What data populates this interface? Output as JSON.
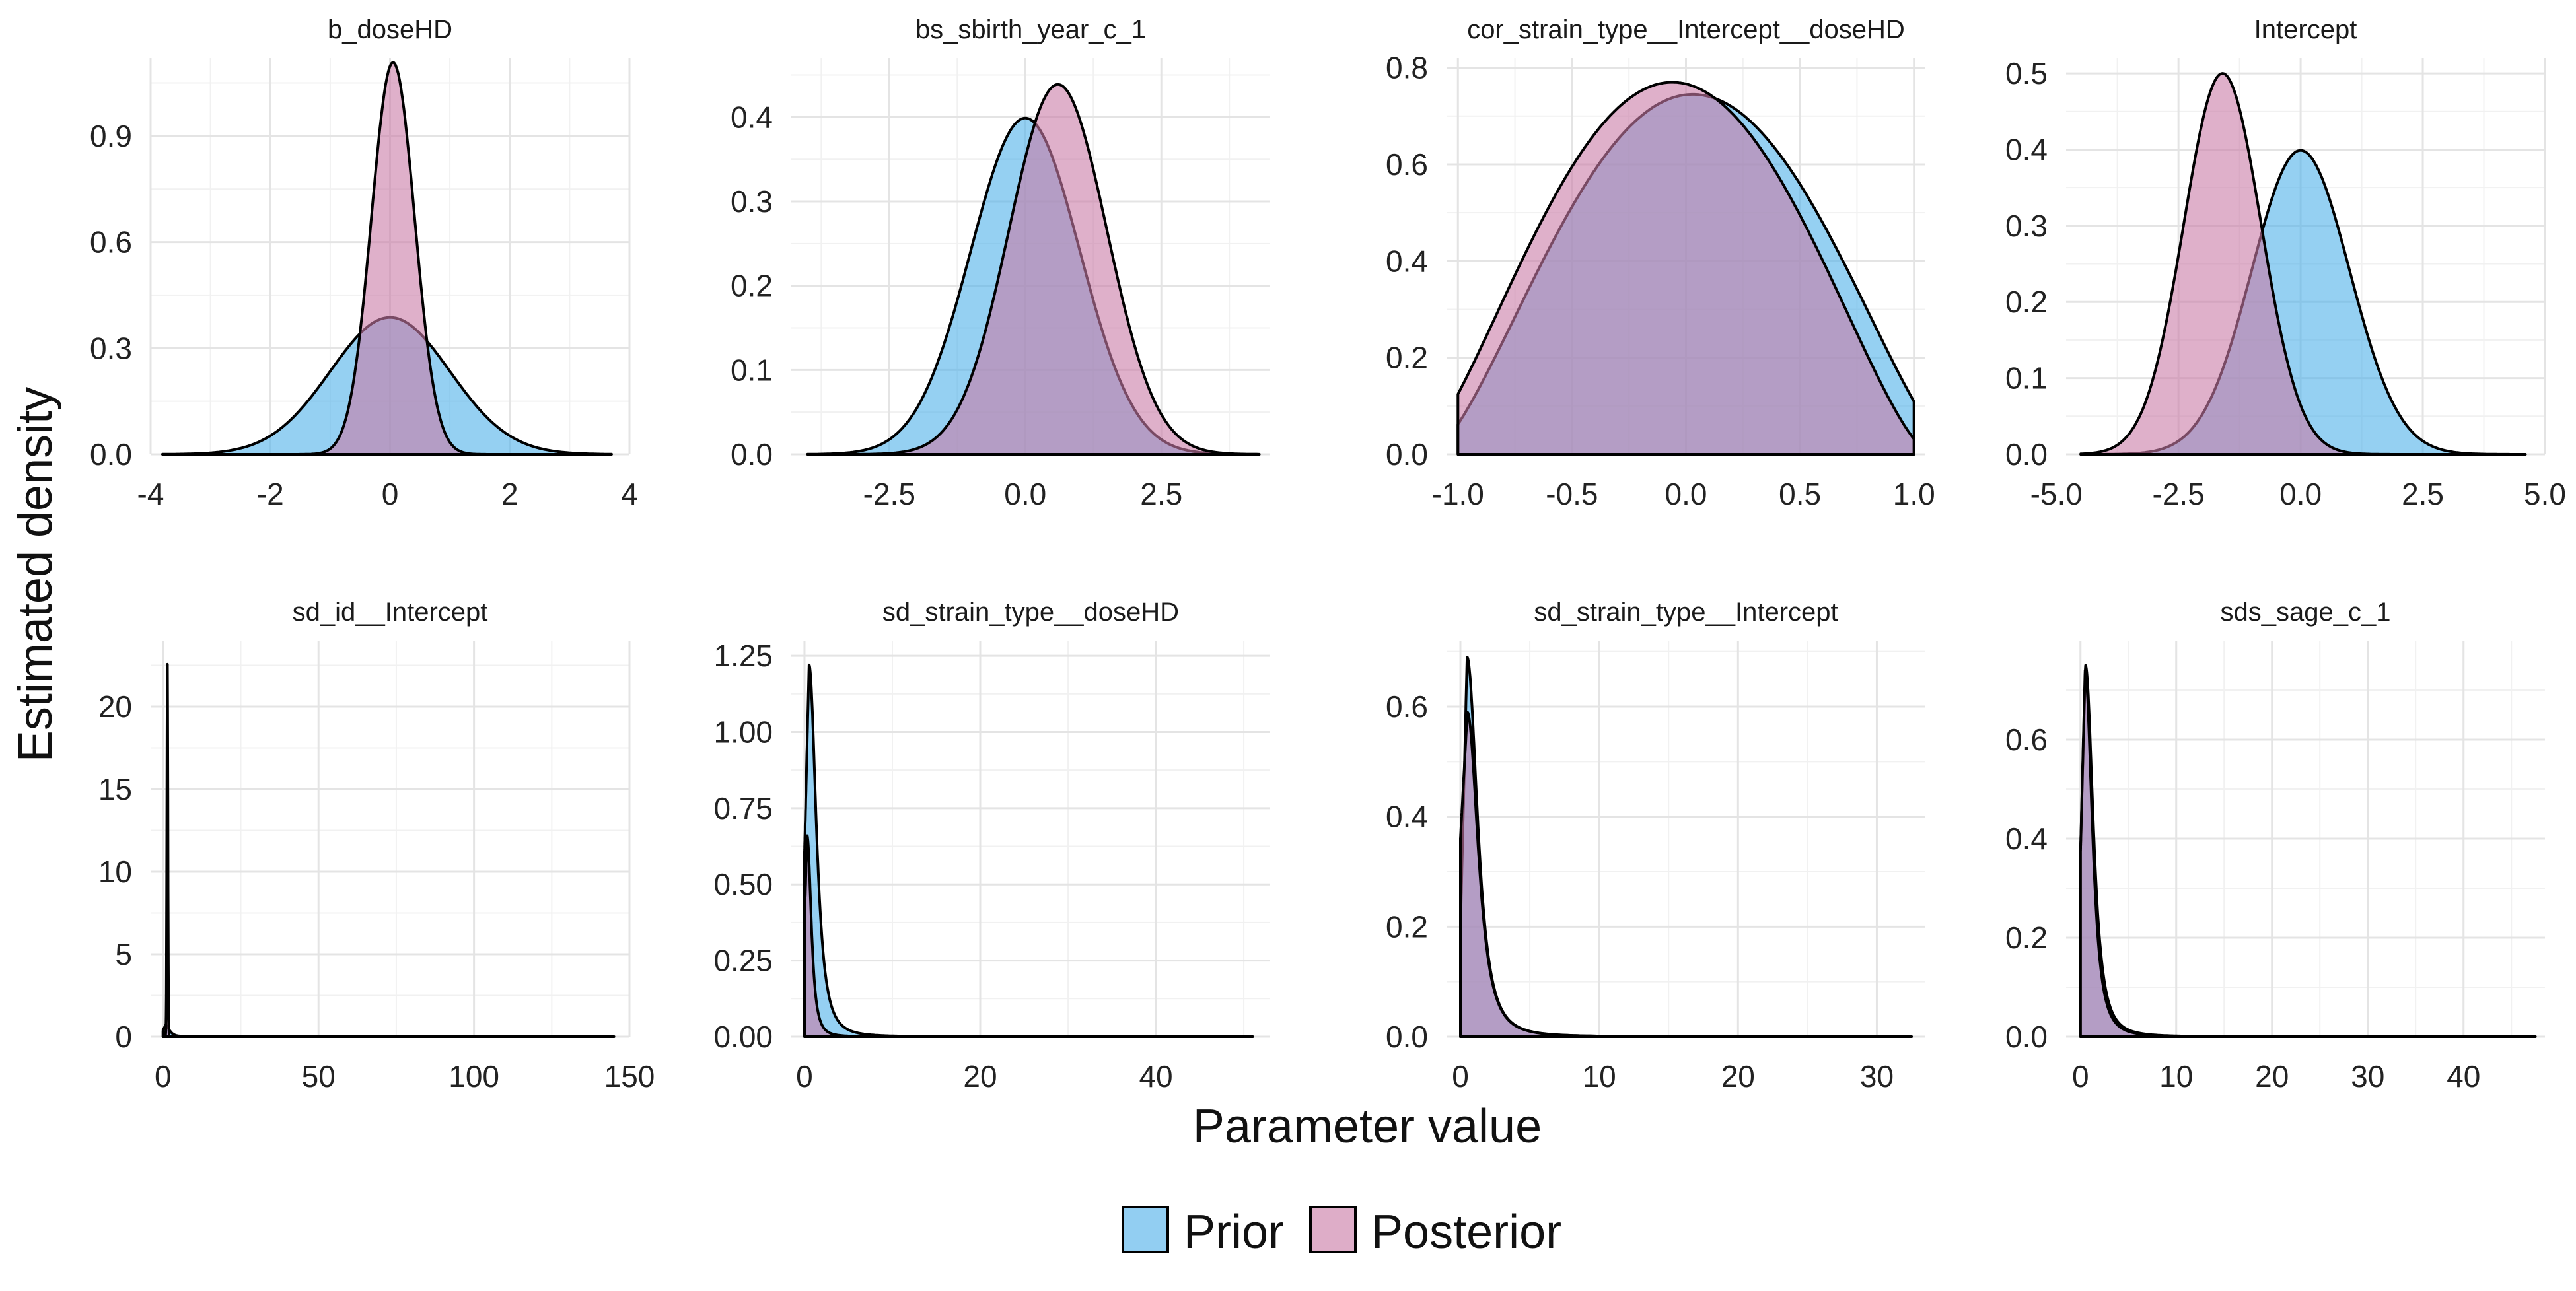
{
  "chart_data": {
    "type": "area",
    "xlabel": "Parameter value",
    "ylabel": "Estimated density",
    "colors": {
      "prior": "#4fb0ea",
      "posterior": "#c97ba6"
    },
    "legend": {
      "position": "bottom",
      "entries": [
        {
          "name": "Prior",
          "color": "#4fb0ea"
        },
        {
          "name": "Posterior",
          "color": "#c97ba6"
        }
      ]
    },
    "panels": [
      {
        "title": "b_doseHD",
        "xlim": [
          -4,
          4
        ],
        "ylim": [
          0,
          1.12
        ],
        "x_ticks": [
          -4,
          -2,
          0,
          2,
          4
        ],
        "x_tick_labels": [
          "-4",
          "-2",
          "0",
          "2",
          "4"
        ],
        "y_ticks": [
          0,
          0.3,
          0.6,
          0.9
        ],
        "y_tick_labels": [
          "0.0",
          "0.3",
          "0.6",
          "0.9"
        ],
        "x_range": [
          -3.8,
          3.7
        ],
        "series": [
          {
            "name": "Prior",
            "dist": {
              "kind": "normal",
              "mu": 0,
              "sigma": 1.0,
              "scale": 0.97
            }
          },
          {
            "name": "Posterior",
            "dist": {
              "kind": "normal",
              "mu": 0.05,
              "sigma": 0.36,
              "scale": 1.0
            }
          }
        ]
      },
      {
        "title": "bs_sbirth_year_c_1",
        "xlim": [
          -4.3,
          4.5
        ],
        "ylim": [
          0,
          0.47
        ],
        "x_ticks": [
          -2.5,
          0,
          2.5
        ],
        "x_tick_labels": [
          "-2.5",
          "0.0",
          "2.5"
        ],
        "y_ticks": [
          0,
          0.1,
          0.2,
          0.3,
          0.4
        ],
        "y_tick_labels": [
          "0.0",
          "0.1",
          "0.2",
          "0.3",
          "0.4"
        ],
        "x_range": [
          -4.0,
          4.3
        ],
        "series": [
          {
            "name": "Prior",
            "dist": {
              "kind": "normal",
              "mu": 0,
              "sigma": 1.0,
              "scale": 1.0
            }
          },
          {
            "name": "Posterior",
            "dist": {
              "kind": "normal",
              "mu": 0.6,
              "sigma": 0.9,
              "scale": 0.99
            }
          }
        ]
      },
      {
        "title": "cor_strain_type__Intercept__doseHD",
        "xlim": [
          -1.05,
          1.05
        ],
        "ylim": [
          0,
          0.82
        ],
        "x_ticks": [
          -1,
          -0.5,
          0,
          0.5,
          1
        ],
        "x_tick_labels": [
          "-1.0",
          "-0.5",
          "0.0",
          "0.5",
          "1.0"
        ],
        "y_ticks": [
          0,
          0.2,
          0.4,
          0.6,
          0.8
        ],
        "y_tick_labels": [
          "0.0",
          "0.2",
          "0.4",
          "0.6",
          "0.8"
        ],
        "x_range": [
          -1.0,
          1.0
        ],
        "series": [
          {
            "name": "Prior",
            "dist": {
              "kind": "hump",
              "center": 0.03,
              "half_width": 1.16,
              "power": 1.6,
              "peak": 0.745
            }
          },
          {
            "name": "Posterior",
            "dist": {
              "kind": "hump",
              "center": -0.06,
              "half_width": 1.14,
              "power": 1.6,
              "peak": 0.77
            }
          }
        ]
      },
      {
        "title": "Intercept",
        "xlim": [
          -4.8,
          5.0
        ],
        "ylim": [
          0,
          0.52
        ],
        "x_ticks": [
          -5,
          -2.5,
          0,
          2.5,
          5
        ],
        "x_tick_labels": [
          "-5.0",
          "-2.5",
          "0.0",
          "2.5",
          "5.0"
        ],
        "y_ticks": [
          0,
          0.1,
          0.2,
          0.3,
          0.4,
          0.5
        ],
        "y_tick_labels": [
          "0.0",
          "0.1",
          "0.2",
          "0.3",
          "0.4",
          "0.5"
        ],
        "x_range": [
          -4.5,
          4.6
        ],
        "series": [
          {
            "name": "Prior",
            "dist": {
              "kind": "normal",
              "mu": 0,
              "sigma": 1.0,
              "scale": 1.0
            }
          },
          {
            "name": "Posterior",
            "dist": {
              "kind": "normal",
              "mu": -1.6,
              "sigma": 0.79,
              "scale": 0.99
            }
          }
        ]
      },
      {
        "title": "sd_id__Intercept",
        "xlim": [
          -4,
          150
        ],
        "ylim": [
          0,
          24
        ],
        "x_ticks": [
          0,
          50,
          100,
          150
        ],
        "x_tick_labels": [
          "0",
          "50",
          "100",
          "150"
        ],
        "y_ticks": [
          0,
          5,
          10,
          15,
          20
        ],
        "y_tick_labels": [
          "0",
          "5",
          "10",
          "15",
          "20"
        ],
        "x_range": [
          0,
          145
        ],
        "series": [
          {
            "name": "Prior",
            "dist": {
              "kind": "halft",
              "scale": 2.0,
              "y0": 0.4,
              "peak": 0.7
            }
          },
          {
            "name": "Posterior",
            "dist": {
              "kind": "spike",
              "mu": 1.4,
              "sigma": 0.17,
              "peak": 22.7
            }
          }
        ]
      },
      {
        "title": "sd_strain_type__doseHD",
        "xlim": [
          -1.5,
          53
        ],
        "ylim": [
          0,
          1.3
        ],
        "x_ticks": [
          0,
          20,
          40
        ],
        "x_tick_labels": [
          "0",
          "20",
          "40"
        ],
        "y_ticks": [
          0,
          0.25,
          0.5,
          0.75,
          1.0,
          1.25
        ],
        "y_tick_labels": [
          "0.00",
          "0.25",
          "0.50",
          "0.75",
          "1.00",
          "1.25"
        ],
        "x_range": [
          0,
          51
        ],
        "series": [
          {
            "name": "Prior",
            "dist": {
              "kind": "halft",
              "scale": 1.3,
              "y0": 0.6,
              "peak": 1.22
            }
          },
          {
            "name": "Posterior",
            "dist": {
              "kind": "halft",
              "scale": 0.75,
              "y0": 0.38,
              "peak": 0.66
            }
          }
        ]
      },
      {
        "title": "sd_strain_type__Intercept",
        "xlim": [
          -1.0,
          33.5
        ],
        "ylim": [
          0,
          0.72
        ],
        "x_ticks": [
          0,
          10,
          20,
          30
        ],
        "x_tick_labels": [
          "0",
          "10",
          "20",
          "30"
        ],
        "y_ticks": [
          0,
          0.2,
          0.4,
          0.6
        ],
        "y_tick_labels": [
          "0.0",
          "0.2",
          "0.4",
          "0.6"
        ],
        "x_range": [
          0,
          32.5
        ],
        "series": [
          {
            "name": "Prior",
            "dist": {
              "kind": "halft",
              "scale": 1.2,
              "y0": 0.19,
              "peak": 0.69
            }
          },
          {
            "name": "Posterior",
            "dist": {
              "kind": "halft",
              "scale": 1.25,
              "y0": 0.36,
              "peak": 0.59
            }
          }
        ]
      },
      {
        "title": "sds_sage_c_1",
        "xlim": [
          -1.5,
          48.5
        ],
        "ylim": [
          0,
          0.8
        ],
        "x_ticks": [
          0,
          10,
          20,
          30,
          40
        ],
        "x_tick_labels": [
          "0",
          "10",
          "20",
          "30",
          "40"
        ],
        "y_ticks": [
          0,
          0.2,
          0.4,
          0.6
        ],
        "y_tick_labels": [
          "0.0",
          "0.2",
          "0.4",
          "0.6"
        ],
        "x_range": [
          0,
          47.5
        ],
        "series": [
          {
            "name": "Prior",
            "dist": {
              "kind": "halft",
              "scale": 1.3,
              "y0": 0.37,
              "peak": 0.75
            }
          },
          {
            "name": "Posterior",
            "dist": {
              "kind": "halft",
              "scale": 1.2,
              "y0": 0.37,
              "peak": 0.74
            }
          }
        ]
      }
    ]
  }
}
